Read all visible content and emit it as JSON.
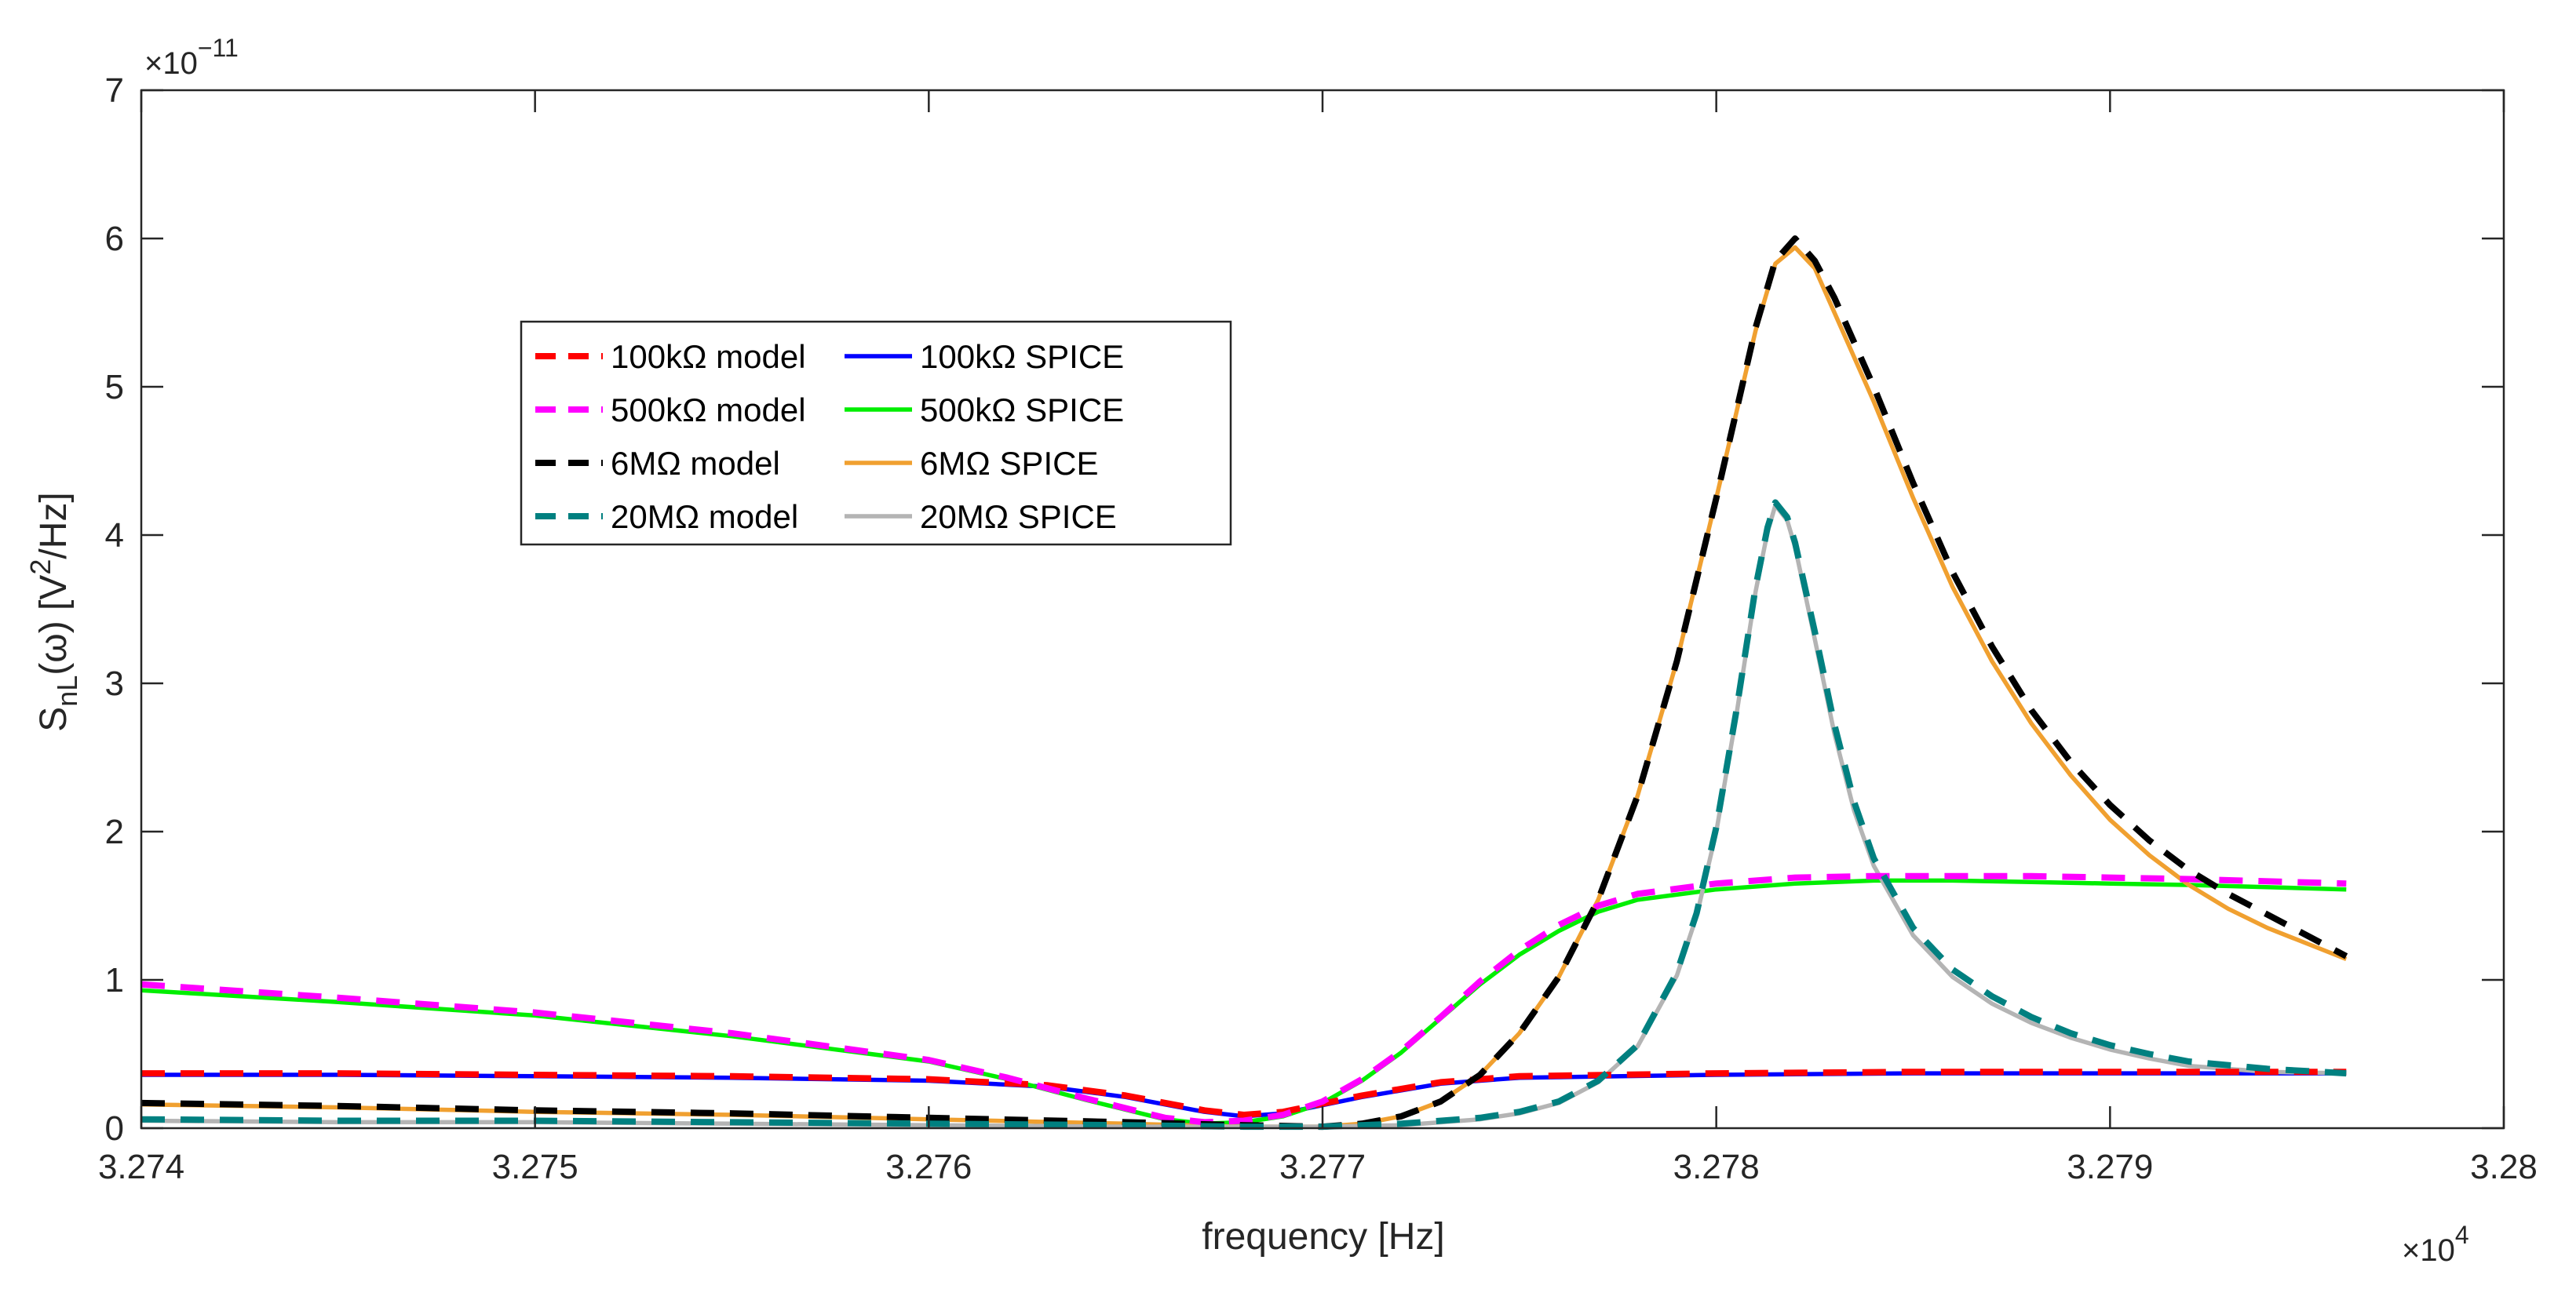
{
  "chart_data": {
    "type": "line",
    "xlabel": "frequency [Hz]",
    "ylabel": {
      "base": "S",
      "sub": "nL",
      "arg": "(ω) [V",
      "sup": "2",
      "end": "/Hz]"
    },
    "x_multiplier": {
      "base": "×10",
      "exp": "4"
    },
    "y_multiplier": {
      "base": "×10",
      "exp": "−11"
    },
    "xlim": [
      32740,
      32800
    ],
    "ylim": [
      0,
      7
    ],
    "xticks": [
      32740,
      32750,
      32760,
      32770,
      32780,
      32790,
      32800
    ],
    "xtick_labels": [
      "3.274",
      "3.275",
      "3.276",
      "3.277",
      "3.278",
      "3.279",
      "3.28"
    ],
    "yticks": [
      0,
      1,
      2,
      3,
      4,
      5,
      6,
      7
    ],
    "ytick_labels": [
      "0",
      "1",
      "2",
      "3",
      "4",
      "5",
      "6",
      "7"
    ],
    "grid": false,
    "legend_position": "upper-left-center",
    "series": [
      {
        "name": "100kΩ model",
        "color": "#ff0000",
        "dash": true,
        "x": [
          32740,
          32745,
          32750,
          32755,
          32760,
          32763,
          32765,
          32767,
          32768,
          32769,
          32771,
          32773,
          32775,
          32780,
          32785,
          32790,
          32796
        ],
        "y": [
          0.37,
          0.37,
          0.36,
          0.35,
          0.33,
          0.29,
          0.22,
          0.12,
          0.09,
          0.11,
          0.22,
          0.31,
          0.35,
          0.37,
          0.38,
          0.38,
          0.38
        ]
      },
      {
        "name": "100kΩ SPICE",
        "color": "#0000ff",
        "dash": false,
        "x": [
          32740,
          32745,
          32750,
          32755,
          32760,
          32763,
          32765,
          32767,
          32768,
          32769,
          32771,
          32773,
          32775,
          32780,
          32785,
          32790,
          32796
        ],
        "y": [
          0.36,
          0.36,
          0.35,
          0.34,
          0.32,
          0.28,
          0.21,
          0.11,
          0.08,
          0.1,
          0.21,
          0.3,
          0.34,
          0.36,
          0.37,
          0.37,
          0.37
        ]
      },
      {
        "name": "500kΩ model",
        "color": "#ff00ff",
        "dash": true,
        "x": [
          32740,
          32745,
          32750,
          32755,
          32760,
          32762,
          32764,
          32766,
          32767,
          32768,
          32769,
          32770,
          32771,
          32772,
          32773,
          32774,
          32775,
          32776,
          32777,
          32778,
          32780,
          32782,
          32784,
          32786,
          32788,
          32790,
          32792,
          32796
        ],
        "y": [
          0.97,
          0.88,
          0.78,
          0.64,
          0.46,
          0.34,
          0.2,
          0.07,
          0.04,
          0.05,
          0.09,
          0.18,
          0.33,
          0.52,
          0.75,
          0.99,
          1.2,
          1.37,
          1.5,
          1.58,
          1.65,
          1.69,
          1.7,
          1.7,
          1.7,
          1.69,
          1.68,
          1.65
        ]
      },
      {
        "name": "500kΩ SPICE",
        "color": "#00ee00",
        "dash": false,
        "x": [
          32740,
          32745,
          32750,
          32755,
          32760,
          32762,
          32764,
          32766,
          32767,
          32768,
          32769,
          32770,
          32771,
          32772,
          32773,
          32774,
          32775,
          32776,
          32777,
          32778,
          32780,
          32782,
          32784,
          32786,
          32788,
          32790,
          32792,
          32796
        ],
        "y": [
          0.93,
          0.85,
          0.76,
          0.62,
          0.45,
          0.33,
          0.19,
          0.06,
          0.03,
          0.04,
          0.08,
          0.17,
          0.32,
          0.51,
          0.74,
          0.97,
          1.17,
          1.33,
          1.46,
          1.54,
          1.61,
          1.65,
          1.67,
          1.67,
          1.66,
          1.65,
          1.64,
          1.61
        ]
      },
      {
        "name": "6MΩ model",
        "color": "#000000",
        "dash": true,
        "x": [
          32740,
          32745,
          32750,
          32755,
          32760,
          32765,
          32768,
          32770,
          32771,
          32772,
          32773,
          32774,
          32775,
          32776,
          32777,
          32778,
          32779,
          32780,
          32781,
          32781.5,
          32782,
          32782.5,
          32783,
          32784,
          32785,
          32786,
          32787,
          32788,
          32789,
          32790,
          32791,
          32792,
          32793,
          32794,
          32796
        ],
        "y": [
          0.17,
          0.15,
          0.12,
          0.1,
          0.07,
          0.04,
          0.02,
          0.01,
          0.03,
          0.08,
          0.18,
          0.36,
          0.64,
          1.02,
          1.54,
          2.24,
          3.15,
          4.25,
          5.4,
          5.85,
          6.0,
          5.85,
          5.6,
          5.0,
          4.35,
          3.75,
          3.25,
          2.82,
          2.47,
          2.18,
          1.94,
          1.74,
          1.58,
          1.44,
          1.16
        ]
      },
      {
        "name": "6MΩ SPICE",
        "color": "#f0a030",
        "dash": false,
        "x": [
          32740,
          32745,
          32750,
          32755,
          32760,
          32765,
          32768,
          32770,
          32771,
          32772,
          32773,
          32774,
          32775,
          32776,
          32777,
          32778,
          32779,
          32780,
          32781,
          32781.5,
          32782,
          32782.5,
          32783,
          32784,
          32785,
          32786,
          32787,
          32788,
          32789,
          32790,
          32791,
          32792,
          32793,
          32794,
          32796
        ],
        "y": [
          0.16,
          0.14,
          0.11,
          0.09,
          0.06,
          0.03,
          0.01,
          0.01,
          0.03,
          0.08,
          0.18,
          0.36,
          0.64,
          1.02,
          1.54,
          2.24,
          3.15,
          4.25,
          5.38,
          5.83,
          5.94,
          5.8,
          5.5,
          4.9,
          4.25,
          3.65,
          3.15,
          2.73,
          2.38,
          2.08,
          1.84,
          1.64,
          1.48,
          1.35,
          1.14
        ]
      },
      {
        "name": "20MΩ model",
        "color": "#008080",
        "dash": true,
        "x": [
          32740,
          32745,
          32750,
          32755,
          32760,
          32765,
          32768,
          32770,
          32772,
          32774,
          32775,
          32776,
          32777,
          32778,
          32779,
          32779.5,
          32780,
          32780.5,
          32781,
          32781.3,
          32781.5,
          32781.8,
          32782,
          32782.5,
          32783,
          32783.5,
          32784,
          32785,
          32786,
          32787,
          32788,
          32789,
          32790,
          32791,
          32792,
          32794,
          32796
        ],
        "y": [
          0.06,
          0.05,
          0.05,
          0.04,
          0.03,
          0.02,
          0.01,
          0.01,
          0.03,
          0.07,
          0.11,
          0.18,
          0.32,
          0.56,
          1.05,
          1.45,
          2.03,
          2.8,
          3.65,
          4.05,
          4.22,
          4.12,
          3.95,
          3.35,
          2.72,
          2.2,
          1.82,
          1.35,
          1.07,
          0.89,
          0.75,
          0.64,
          0.56,
          0.5,
          0.45,
          0.4,
          0.37
        ]
      },
      {
        "name": "20MΩ SPICE",
        "color": "#b4b4b4",
        "dash": false,
        "x": [
          32740,
          32745,
          32750,
          32755,
          32760,
          32765,
          32768,
          32770,
          32772,
          32774,
          32775,
          32776,
          32777,
          32778,
          32779,
          32779.5,
          32780,
          32780.5,
          32781,
          32781.3,
          32781.5,
          32781.8,
          32782,
          32782.5,
          32783,
          32783.5,
          32784,
          32785,
          32786,
          32787,
          32788,
          32789,
          32790,
          32791,
          32792,
          32794,
          32796
        ],
        "y": [
          0.05,
          0.04,
          0.04,
          0.03,
          0.02,
          0.01,
          0.01,
          0.01,
          0.02,
          0.06,
          0.1,
          0.17,
          0.31,
          0.55,
          1.03,
          1.43,
          2.0,
          2.77,
          3.62,
          4.02,
          4.2,
          4.1,
          3.92,
          3.3,
          2.66,
          2.14,
          1.77,
          1.3,
          1.02,
          0.84,
          0.71,
          0.61,
          0.53,
          0.47,
          0.42,
          0.38,
          0.37
        ]
      }
    ],
    "legend_layout": [
      [
        "100kΩ model",
        "100kΩ SPICE"
      ],
      [
        "500kΩ model",
        "500kΩ SPICE"
      ],
      [
        "6MΩ model",
        "6MΩ SPICE"
      ],
      [
        "20MΩ model",
        "20MΩ SPICE"
      ]
    ]
  }
}
